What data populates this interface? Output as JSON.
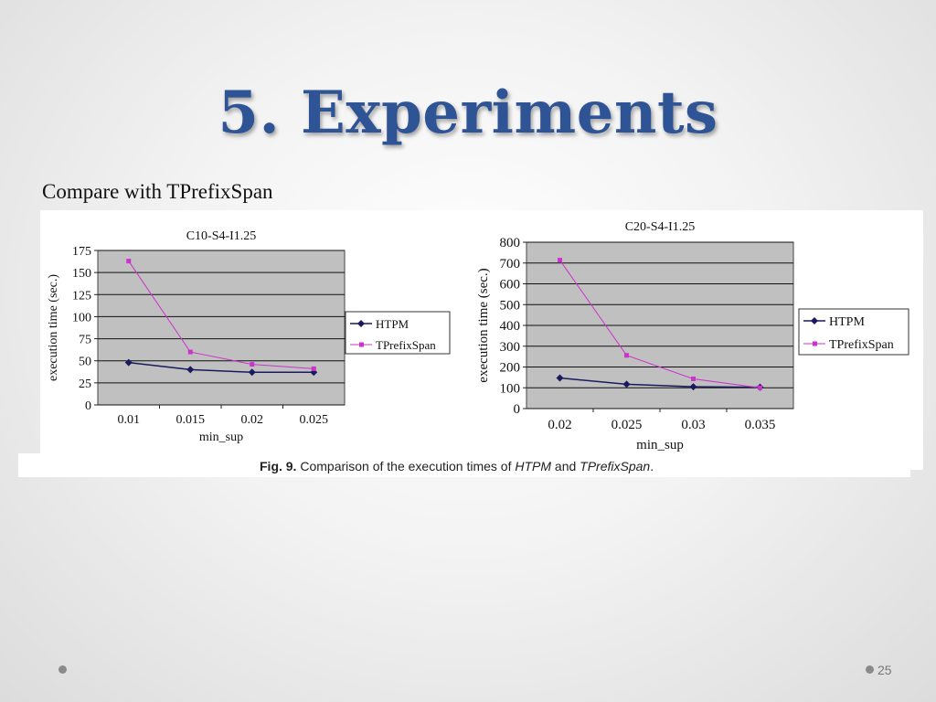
{
  "slide": {
    "title": "5. Experiments",
    "subtitle": "Compare with TPrefixSpan",
    "caption": {
      "label": "Fig. 9.",
      "text_before": "Comparison of the execution times of",
      "term1": "HTPM",
      "text_mid": "and",
      "term2": "TPrefixSpan",
      "text_end": "."
    },
    "page_number": "25"
  },
  "chart_data": [
    {
      "type": "line",
      "title": "C10-S4-I1.25",
      "xlabel": "min_sup",
      "ylabel": "execution time (sec.)",
      "categories": [
        "0.01",
        "0.015",
        "0.02",
        "0.025"
      ],
      "ylim": [
        0,
        175
      ],
      "yticks": [
        0,
        25,
        50,
        75,
        100,
        125,
        150,
        175
      ],
      "grid": true,
      "legend": "right",
      "series": [
        {
          "name": "HTPM",
          "values": [
            48,
            40,
            37,
            37
          ],
          "color": "#1a1a5e",
          "marker": "diamond"
        },
        {
          "name": "TPrefixSpan",
          "values": [
            163,
            60,
            46,
            41
          ],
          "color": "#cc33cc",
          "marker": "square"
        }
      ]
    },
    {
      "type": "line",
      "title": "C20-S4-I1.25",
      "xlabel": "min_sup",
      "ylabel": "execution time (sec.)",
      "categories": [
        "0.02",
        "0.025",
        "0.03",
        "0.035"
      ],
      "ylim": [
        0,
        800
      ],
      "yticks": [
        0,
        100,
        200,
        300,
        400,
        500,
        600,
        700,
        800
      ],
      "grid": true,
      "legend": "right",
      "series": [
        {
          "name": "HTPM",
          "values": [
            147,
            117,
            105,
            103
          ],
          "color": "#1a1a5e",
          "marker": "diamond"
        },
        {
          "name": "TPrefixSpan",
          "values": [
            714,
            256,
            143,
            100
          ],
          "color": "#cc33cc",
          "marker": "square"
        }
      ]
    }
  ]
}
